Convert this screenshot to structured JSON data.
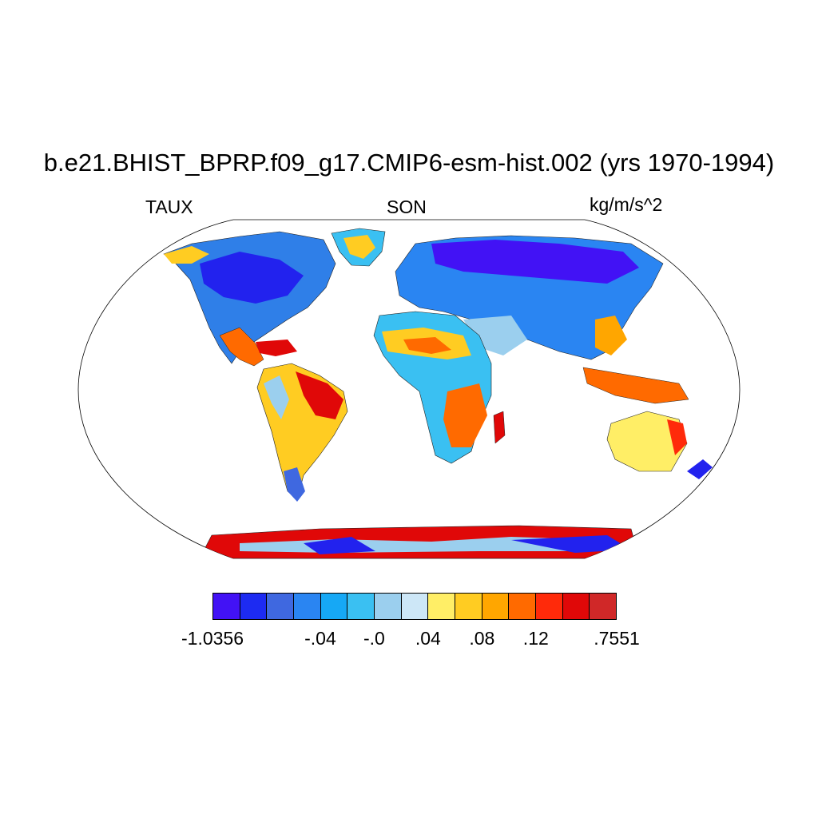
{
  "title": "b.e21.BHIST_BPRP.f09_g17.CMIP6-esm-hist.002 (yrs 1970-1994)",
  "left_string": "TAUX",
  "center_string": "SON",
  "right_string": "kg/m/s^2",
  "projection": "Robinson (global)",
  "colorbar": {
    "colors": [
      "#4212F5",
      "#1D2BF2",
      "#3F68E0",
      "#2A85F2",
      "#16A8F5",
      "#3AC0F2",
      "#9BCFEE",
      "#CDE7F7",
      "#FFEE66",
      "#FFCC22",
      "#FFA600",
      "#FF6A00",
      "#FF2A0A",
      "#E00808",
      "#D02828"
    ],
    "labels": [
      {
        "text": "-1.0356",
        "boundary": 0
      },
      {
        "text": "-.04",
        "boundary": 4
      },
      {
        "text": "-.0",
        "boundary": 6
      },
      {
        "text": ".04",
        "boundary": 8
      },
      {
        "text": ".08",
        "boundary": 10
      },
      {
        "text": ".12",
        "boundary": 12
      },
      {
        "text": ".7551",
        "boundary": 15
      }
    ]
  }
}
